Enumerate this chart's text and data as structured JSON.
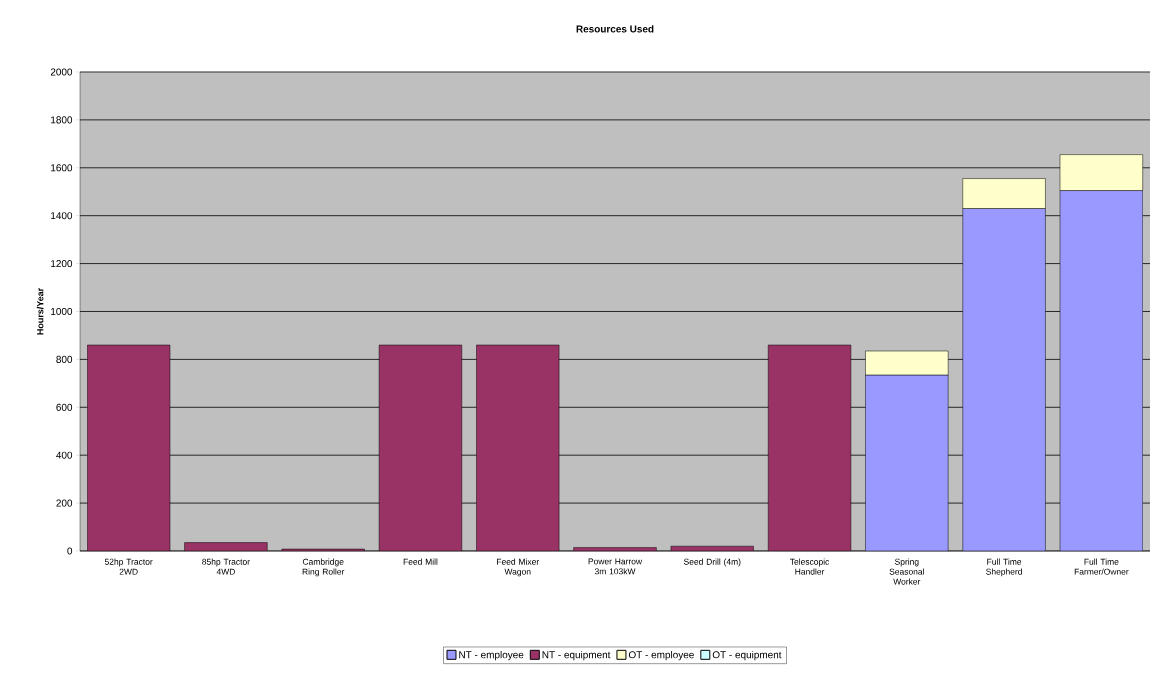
{
  "chart_data": {
    "type": "bar",
    "title": "Resources Used",
    "ylabel": "Hours/Year",
    "categories": [
      "52hp Tractor 2WD",
      "85hp Tractor 4WD",
      "Cambridge Ring Roller",
      "Feed Mill",
      "Feed Mixer Wagon",
      "Power Harrow 3m 103kW",
      "Seed Drill (4m)",
      "Telescopic Handler",
      "Spring Seasonal Worker",
      "Full Time Shepherd",
      "Full Time Farmer/Owner"
    ],
    "stacked": true,
    "series": [
      {
        "name": "NT - employee",
        "color": "#9999ff",
        "values": [
          null,
          null,
          null,
          null,
          null,
          null,
          null,
          null,
          735,
          1430,
          1505
        ]
      },
      {
        "name": "NT - equipment",
        "color": "#993366",
        "values": [
          860,
          35,
          8,
          860,
          860,
          15,
          20,
          860,
          null,
          null,
          null
        ]
      },
      {
        "name": "OT - employee",
        "color": "#ffffcc",
        "values": [
          null,
          null,
          null,
          null,
          null,
          null,
          null,
          null,
          100,
          125,
          150
        ]
      },
      {
        "name": "OT - equipment",
        "color": "#ccffff",
        "values": [
          null,
          null,
          null,
          null,
          null,
          null,
          null,
          null,
          null,
          null,
          null
        ]
      }
    ],
    "ylim": [
      0,
      2000
    ],
    "yticks": [
      0,
      200,
      400,
      600,
      800,
      1000,
      1200,
      1400,
      1600,
      1800,
      2000
    ],
    "grid": "y",
    "legend": "bottom"
  }
}
